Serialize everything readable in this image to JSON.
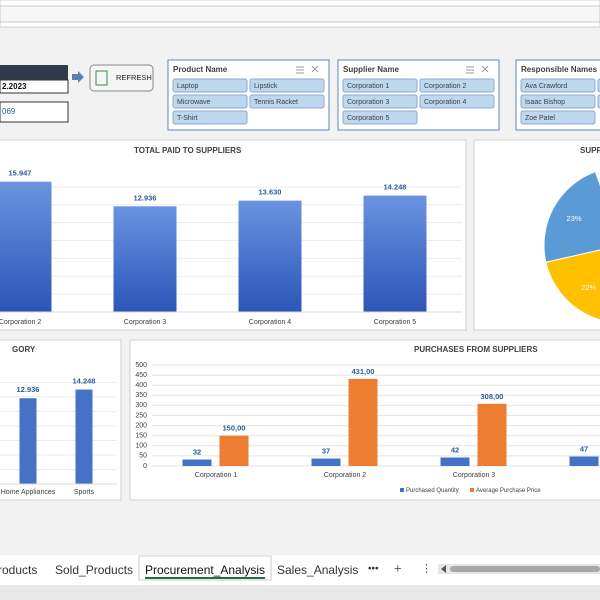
{
  "filters": {
    "date": "2.2023",
    "count": "069",
    "refresh": "REFRESH"
  },
  "slicers": [
    {
      "title": "Product Name",
      "items": [
        "Laptop",
        "Lipstick",
        "Microwave",
        "Tennis Racket",
        "T-Shirt"
      ]
    },
    {
      "title": "Supplier Name",
      "items": [
        "Corporation 1",
        "Corporation 2",
        "Corporation 3",
        "Corporation 4",
        "Corporation 5"
      ]
    },
    {
      "title": "Responsible Names",
      "items": [
        "Ava Crawford",
        "Ga",
        "Isaac Bishop",
        "O",
        "Zoe Patel"
      ]
    }
  ],
  "chart_data": [
    {
      "type": "bar",
      "title": "TOTAL PAID TO SUPPLIERS",
      "categories": [
        "Corporation 2",
        "Corporation 3",
        "Corporation 4",
        "Corporation 5"
      ],
      "values": [
        15947,
        12936,
        13630,
        14248
      ],
      "value_labels": [
        "15.947",
        "12.936",
        "13.630",
        "14.248"
      ],
      "color": "#3a64c4",
      "ylim": [
        0,
        17500
      ]
    },
    {
      "type": "pie",
      "title": "SUPP",
      "values": [
        23,
        22
      ],
      "value_labels": [
        "23%",
        "22%"
      ],
      "colors": [
        "#5b9bd5",
        "#ffc000"
      ]
    },
    {
      "type": "bar",
      "title": "GORY",
      "categories": [
        "Home Appliances",
        "Sports"
      ],
      "values": [
        12936,
        14248
      ],
      "value_labels": [
        "12.936",
        "14.248"
      ],
      "color": "#4472c4",
      "ylim": [
        0,
        17500
      ]
    },
    {
      "type": "grouped-bar",
      "title": "PURCHASES FROM SUPPLIERS",
      "categories": [
        "Corporation 1",
        "Corporation 2",
        "Corporation 3",
        null
      ],
      "series": [
        {
          "name": "Purchased Quantity",
          "color": "#4472c4",
          "values": [
            32,
            37,
            42,
            47
          ]
        },
        {
          "name": "Average Purchase Price",
          "color": "#ed7d31",
          "values": [
            150,
            431,
            308,
            null
          ],
          "value_labels": [
            "150,00",
            "431,00",
            "308,00",
            null
          ]
        }
      ],
      "ylim": [
        0,
        500
      ],
      "yticks": [
        0,
        50,
        100,
        150,
        200,
        250,
        300,
        350,
        400,
        450,
        500
      ],
      "grid": true
    }
  ],
  "sheet_tabs": [
    "roducts",
    "Sold_Products",
    "Procurement_Analysis",
    "Sales_Analysis"
  ],
  "active_tab": 2
}
